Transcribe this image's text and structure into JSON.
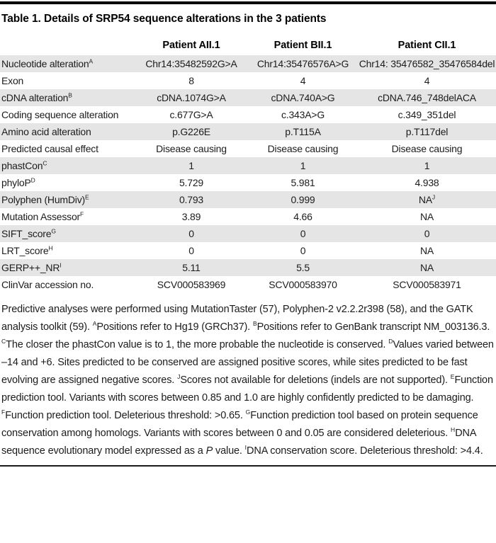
{
  "page": {
    "title": "Table 1. Details of SRP54 sequence alterations in the 3 patients"
  },
  "colors": {
    "stripe": "#e5e5e5",
    "rule_top": "#000000",
    "rule_bottom": "#1a1a1a",
    "text": "#1c1c1c"
  },
  "table": {
    "columns": [
      "",
      "Patient AII.1",
      "Patient BII.1",
      "Patient CII.1"
    ],
    "rows": [
      {
        "label": "Nucleotide alteration",
        "label_sup": "A",
        "values": [
          "Chr14:35482592G>A",
          "Chr14:35476576A>G",
          "Chr14: 35476582_35476584del"
        ]
      },
      {
        "label": "Exon",
        "label_sup": "",
        "values": [
          "8",
          "4",
          "4"
        ]
      },
      {
        "label": "cDNA alteration",
        "label_sup": "B",
        "values": [
          "cDNA.1074G>A",
          "cDNA.740A>G",
          "cDNA.746_748delACA"
        ]
      },
      {
        "label": "Coding sequence alteration",
        "label_sup": "",
        "values": [
          "c.677G>A",
          "c.343A>G",
          "c.349_351del"
        ]
      },
      {
        "label": "Amino acid alteration",
        "label_sup": "",
        "values": [
          "p.G226E",
          "p.T115A",
          "p.T117del"
        ]
      },
      {
        "label": "Predicted causal effect",
        "label_sup": "",
        "values": [
          "Disease causing",
          "Disease causing",
          "Disease causing"
        ]
      },
      {
        "label": "phastCon",
        "label_sup": "C",
        "values": [
          "1",
          "1",
          "1"
        ]
      },
      {
        "label": "phyloP",
        "label_sup": "D",
        "values": [
          "5.729",
          "5.981",
          "4.938"
        ]
      },
      {
        "label": "Polyphen (HumDiv)",
        "label_sup": "E",
        "values": [
          "0.793",
          "0.999",
          "NA"
        ],
        "value_sups": [
          "",
          "",
          "J"
        ]
      },
      {
        "label": "Mutation Assessor",
        "label_sup": "F",
        "values": [
          "3.89",
          "4.66",
          "NA"
        ]
      },
      {
        "label": "SIFT_score",
        "label_sup": "G",
        "values": [
          "0",
          "0",
          "0"
        ]
      },
      {
        "label": "LRT_score",
        "label_sup": "H",
        "values": [
          "0",
          "0",
          "NA"
        ]
      },
      {
        "label": "GERP++_NR",
        "label_sup": "I",
        "values": [
          "5.11",
          "5.5",
          "NA"
        ]
      },
      {
        "label": "ClinVar accession no.",
        "label_sup": "",
        "values": [
          "SCV000583969",
          "SCV000583970",
          "SCV000583971"
        ]
      }
    ]
  },
  "footnote": {
    "segments": [
      {
        "t": "Predictive analyses were performed using MutationTaster (57), Polyphen-2 v2.2.2r398 (58), and the GATK analysis toolkit (59). "
      },
      {
        "sup": "A"
      },
      {
        "t": "Positions refer to Hg19 (GRCh37). "
      },
      {
        "sup": "B"
      },
      {
        "t": "Positions refer to GenBank transcript NM_003136.3. "
      },
      {
        "sup": "C"
      },
      {
        "t": "The closer the phastCon value is to 1, the more probable the nucleotide is conserved. "
      },
      {
        "sup": "D"
      },
      {
        "t": "Values varied between –14 and +6. Sites predicted to be conserved are assigned positive scores, while sites predicted to be fast evolving are assigned negative scores. "
      },
      {
        "sup": "J"
      },
      {
        "t": "Scores not available for deletions (indels are not supported). "
      },
      {
        "sup": "E"
      },
      {
        "t": "Function prediction tool. Variants with scores between 0.85 and 1.0 are highly confidently predicted to be damaging. "
      },
      {
        "sup": "F"
      },
      {
        "t": "Function prediction tool. Deleterious threshold: >0.65. "
      },
      {
        "sup": "G"
      },
      {
        "t": "Function prediction tool based on protein sequence conservation among homologs. Variants with scores between 0 and 0.05 are considered deleterious. "
      },
      {
        "sup": "H"
      },
      {
        "t": "DNA sequence evolutionary model expressed as a "
      },
      {
        "i": "P"
      },
      {
        "t": " value. "
      },
      {
        "sup": "I"
      },
      {
        "t": "DNA conservation score. Deleterious threshold: >4.4."
      }
    ]
  }
}
